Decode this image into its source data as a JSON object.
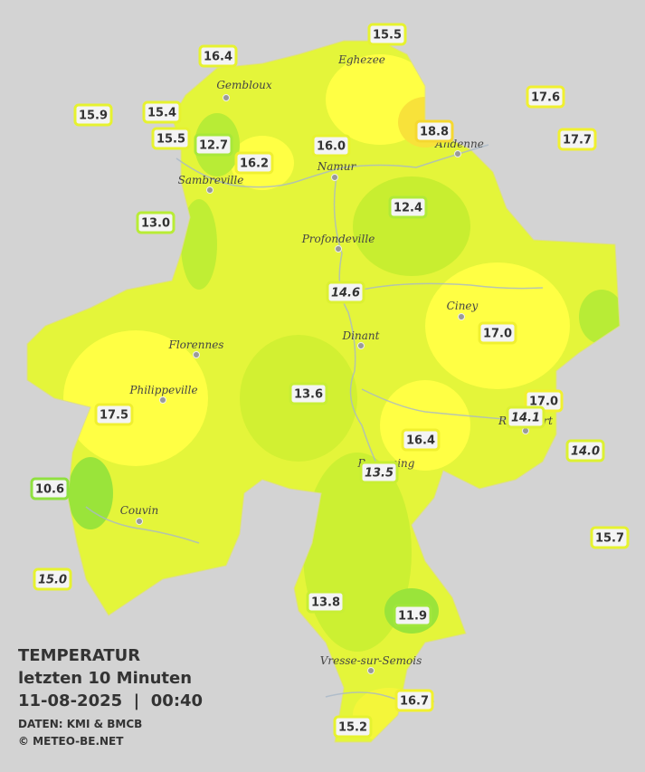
{
  "legend": {
    "title": "TEMPERATUR",
    "period": "letzten 10 Minuten",
    "datetime": "11-08-2025  |  00:40",
    "source": "DATEN: KMI & BMCB",
    "credit": "© METEO-BE.NET"
  },
  "cities": [
    {
      "name": "Eghezee"
    },
    {
      "name": "Gembloux"
    },
    {
      "name": "Andenne"
    },
    {
      "name": "Namur"
    },
    {
      "name": "Sambreville"
    },
    {
      "name": "Profondeville"
    },
    {
      "name": "Ciney"
    },
    {
      "name": "Dinant"
    },
    {
      "name": "Florennes"
    },
    {
      "name": "Philippeville"
    },
    {
      "name": "Rochefort"
    },
    {
      "name": "Beauraing"
    },
    {
      "name": "Couvin"
    },
    {
      "name": "Vresse-sur-Semois"
    }
  ],
  "stations": [
    {
      "label": "15.5",
      "color": "#e6f230"
    },
    {
      "label": "16.4",
      "color": "#e6f230"
    },
    {
      "label": "17.6",
      "color": "#f0f030"
    },
    {
      "label": "15.9",
      "color": "#e6f230"
    },
    {
      "label": "15.4",
      "color": "#e6f230"
    },
    {
      "label": "15.5",
      "color": "#e6f230"
    },
    {
      "label": "12.7",
      "color": "#a8e83a"
    },
    {
      "label": "16.0",
      "color": "#e6f230"
    },
    {
      "label": "18.8",
      "color": "#f5d830"
    },
    {
      "label": "17.7",
      "color": "#f0f030"
    },
    {
      "label": "16.2",
      "color": "#f0f030"
    },
    {
      "label": "13.0",
      "color": "#b8ec36"
    },
    {
      "label": "12.4",
      "color": "#b0ea38"
    },
    {
      "label": "14.6",
      "color": "#dcf032",
      "italic": true
    },
    {
      "label": "17.0",
      "color": "#f0f030"
    },
    {
      "label": "13.6",
      "color": "#c8ee34"
    },
    {
      "label": "17.5",
      "color": "#f0f030"
    },
    {
      "label": "17.0",
      "color": "#f0f030"
    },
    {
      "label": "14.1",
      "color": "#dcf032",
      "italic": true
    },
    {
      "label": "16.4",
      "color": "#f0f030"
    },
    {
      "label": "14.0",
      "color": "#dcf032",
      "italic": true
    },
    {
      "label": "13.5",
      "color": "#c8ee34",
      "italic": true
    },
    {
      "label": "10.6",
      "color": "#90e040"
    },
    {
      "label": "15.7",
      "color": "#e6f230"
    },
    {
      "label": "15.0",
      "color": "#e6f230",
      "italic": true
    },
    {
      "label": "13.8",
      "color": "#c8ee34"
    },
    {
      "label": "11.9",
      "color": "#a0e63c"
    },
    {
      "label": "16.7",
      "color": "#f0f030"
    },
    {
      "label": "15.2",
      "color": "#e6f230"
    }
  ]
}
